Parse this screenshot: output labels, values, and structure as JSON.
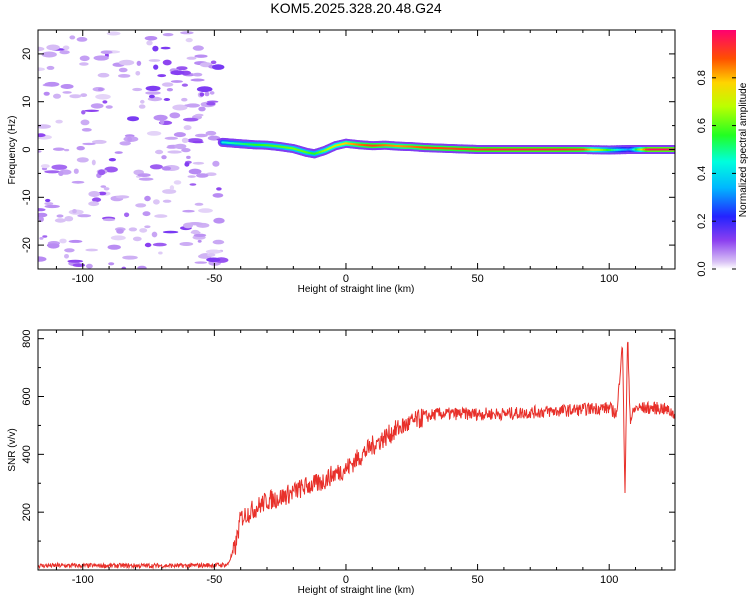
{
  "chart_data": [
    {
      "type": "heatmap",
      "title": "KOM5.2025.328.20.48.G24",
      "xlabel": "Height of straight line (km)",
      "ylabel": "Frequency (Hz)",
      "xlim": [
        -117,
        125
      ],
      "ylim": [
        -25,
        25
      ],
      "xticks": [
        -100,
        -50,
        0,
        50,
        100
      ],
      "xtick_labels": [
        "-100",
        "-50",
        "0",
        "50",
        "100"
      ],
      "yticks": [
        -20,
        -10,
        0,
        10,
        20
      ],
      "ytick_labels": [
        "-20",
        "-10",
        "0",
        "10",
        "20"
      ],
      "noise_region_x": [
        -117,
        -47
      ],
      "signal_start_x": -47,
      "trace": {
        "x": [
          -47,
          -40,
          -35,
          -30,
          -25,
          -20,
          -15,
          -12,
          -8,
          -4,
          0,
          5,
          10,
          15,
          20,
          25,
          30,
          40,
          50,
          60,
          70,
          80,
          90,
          100,
          108,
          115,
          125
        ],
        "freq": [
          1.5,
          1.2,
          1.0,
          0.9,
          0.6,
          0.2,
          -0.6,
          -0.9,
          -0.2,
          0.8,
          1.3,
          1.0,
          0.8,
          0.9,
          0.7,
          0.6,
          0.4,
          0.2,
          0.0,
          0.0,
          0.0,
          0.0,
          0.0,
          -0.1,
          0.0,
          0.0,
          0.0
        ],
        "amplitude": [
          0.45,
          0.5,
          0.55,
          0.58,
          0.6,
          0.62,
          0.6,
          0.55,
          0.65,
          0.72,
          0.78,
          0.85,
          0.9,
          0.85,
          0.82,
          0.85,
          0.88,
          0.9,
          0.92,
          0.95,
          0.95,
          0.95,
          0.9,
          0.55,
          0.3,
          0.98,
          0.98
        ]
      },
      "colorbar": {
        "label": "Normalized spectral amplitude",
        "range": [
          0,
          1
        ],
        "ticks": [
          0.0,
          0.2,
          0.4,
          0.6,
          0.8
        ],
        "tick_labels": [
          "0.0",
          "0.2",
          "0.4",
          "0.6",
          "0.8"
        ]
      }
    },
    {
      "type": "line",
      "xlabel": "Height of straight line (km)",
      "ylabel": "SNR (v/v)",
      "xlim": [
        -117,
        125
      ],
      "ylim": [
        0,
        830
      ],
      "xticks": [
        -100,
        -50,
        0,
        50,
        100
      ],
      "xtick_labels": [
        "-100",
        "-50",
        "0",
        "50",
        "100"
      ],
      "yticks": [
        200,
        400,
        600,
        800
      ],
      "ytick_labels": [
        "200",
        "400",
        "600",
        "800"
      ],
      "line_color": "#e8302a",
      "series": [
        {
          "name": "SNR",
          "x": [
            -117,
            -100,
            -80,
            -60,
            -45,
            -42,
            -40,
            -35,
            -30,
            -25,
            -20,
            -15,
            -10,
            -5,
            0,
            5,
            10,
            15,
            20,
            25,
            30,
            35,
            40,
            50,
            60,
            70,
            80,
            90,
            95,
            100,
            103,
            105,
            106,
            107,
            108,
            110,
            115,
            120,
            125
          ],
          "y": [
            15,
            15,
            15,
            15,
            18,
            80,
            180,
            210,
            240,
            250,
            270,
            290,
            300,
            330,
            350,
            390,
            430,
            460,
            490,
            510,
            530,
            540,
            540,
            540,
            540,
            545,
            550,
            555,
            560,
            560,
            540,
            800,
            270,
            810,
            520,
            560,
            560,
            560,
            540
          ]
        }
      ]
    }
  ]
}
